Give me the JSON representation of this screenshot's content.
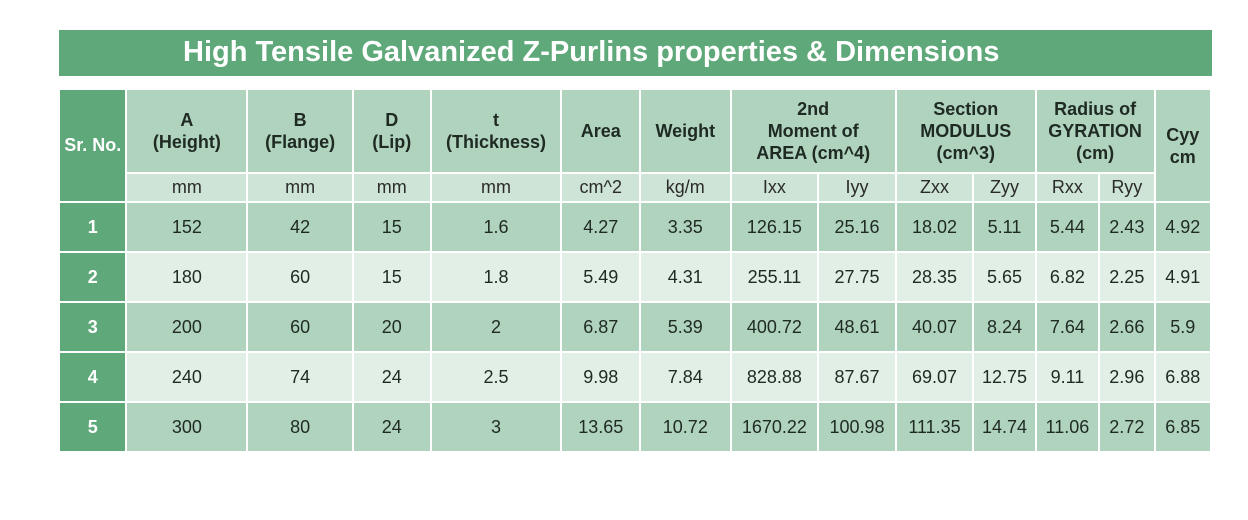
{
  "title": "High Tensile Galvanized Z-Purlins properties & Dimensions",
  "headers": {
    "sr_no": "Sr. No.",
    "a": [
      "A",
      "(Height)"
    ],
    "b": [
      "B",
      "(Flange)"
    ],
    "d": [
      "D",
      "(Lip)"
    ],
    "t": [
      "t",
      "(Thickness)"
    ],
    "area": "Area",
    "weight": "Weight",
    "moment": [
      "2nd",
      "Moment of",
      "AREA (cm^4)"
    ],
    "section": [
      "Section",
      "MODULUS",
      "(cm^3)"
    ],
    "radius": [
      "Radius of",
      "GYRATION",
      "(cm)"
    ],
    "cyy": [
      "Cyy",
      "cm"
    ]
  },
  "units": [
    "mm",
    "mm",
    "mm",
    "mm",
    "cm^2",
    "kg/m",
    "Ixx",
    "Iyy",
    "Zxx",
    "Zyy",
    "Rxx",
    "Ryy"
  ],
  "rows": [
    [
      "1",
      "152",
      "42",
      "15",
      "1.6",
      "4.27",
      "3.35",
      "126.15",
      "25.16",
      "18.02",
      "5.11",
      "5.44",
      "2.43",
      "4.92"
    ],
    [
      "2",
      "180",
      "60",
      "15",
      "1.8",
      "5.49",
      "4.31",
      "255.11",
      "27.75",
      "28.35",
      "5.65",
      "6.82",
      "2.25",
      "4.91"
    ],
    [
      "3",
      "200",
      "60",
      "20",
      "2",
      "6.87",
      "5.39",
      "400.72",
      "48.61",
      "40.07",
      "8.24",
      "7.64",
      "2.66",
      "5.9"
    ],
    [
      "4",
      "240",
      "74",
      "24",
      "2.5",
      "9.98",
      "7.84",
      "828.88",
      "87.67",
      "69.07",
      "12.75",
      "9.11",
      "2.96",
      "6.88"
    ],
    [
      "5",
      "300",
      "80",
      "24",
      "3",
      "13.65",
      "10.72",
      "1670.22",
      "100.98",
      "111.35",
      "14.74",
      "11.06",
      "2.72",
      "6.85"
    ]
  ]
}
